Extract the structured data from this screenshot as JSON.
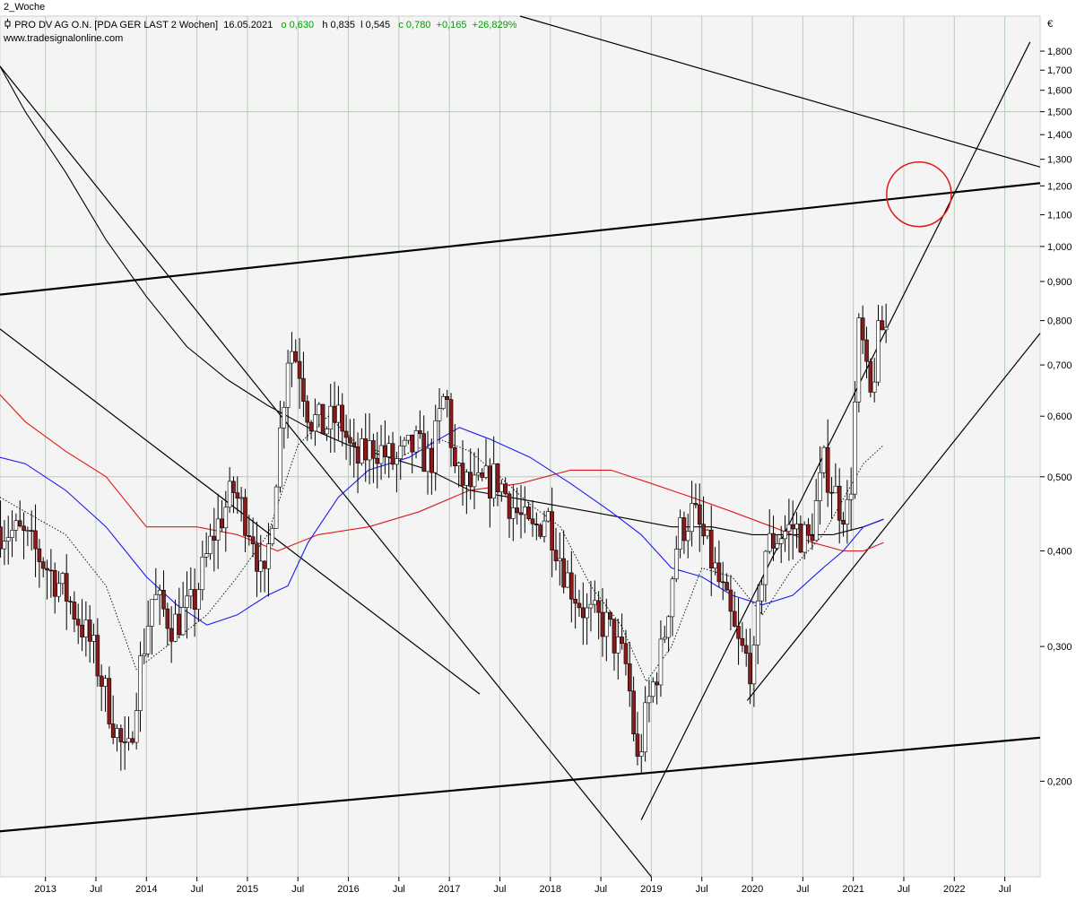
{
  "tab": {
    "label": "2_Woche"
  },
  "header": {
    "symbol_icon": "candlestick-icon",
    "instrument": "PRO DV AG O.N. [PDA GER LAST 2 Wochen]",
    "date": "16.05.2021",
    "open": "o 0,630",
    "high": "h 0,835",
    "low": "l 0,545",
    "close": "c 0,780",
    "change": "+0,165",
    "change_pct": "+26,829%"
  },
  "website": "www.tradesignalonline.com",
  "currency": "€",
  "colors": {
    "up_candle": "#ffffff",
    "down_candle": "#8b1a1a",
    "ma_red": "#e01818",
    "ma_blue": "#1a1aee",
    "ma_black": "#000000",
    "positive_text": "#00a000",
    "circle": "#e01818",
    "grid": "#b8ccb8"
  },
  "chart_data": {
    "type": "candlestick",
    "title": "PRO DV AG O.N. [PDA GER LAST 2 Wochen]",
    "y_scale": "log",
    "ylim": [
      0.15,
      2.0
    ],
    "y_ticks": [
      "1,800",
      "1,700",
      "1,600",
      "1,500",
      "1,400",
      "1,300",
      "1,200",
      "1,100",
      "1,000",
      "0,900",
      "0,800",
      "0,700",
      "0,600",
      "0,500",
      "0,400",
      "0,300",
      "0,200"
    ],
    "y_tick_values": [
      1.8,
      1.7,
      1.6,
      1.5,
      1.4,
      1.3,
      1.2,
      1.1,
      1.0,
      0.9,
      0.8,
      0.7,
      0.6,
      0.5,
      0.4,
      0.3,
      0.2
    ],
    "y_major": [
      1.5,
      1.0,
      0.5
    ],
    "x_range": [
      2012.55,
      2022.85
    ],
    "x_ticks": [
      {
        "label": "2013",
        "t": 2013.0
      },
      {
        "label": "Jul",
        "t": 2013.5
      },
      {
        "label": "2014",
        "t": 2014.0
      },
      {
        "label": "Jul",
        "t": 2014.5
      },
      {
        "label": "2015",
        "t": 2015.0
      },
      {
        "label": "Jul",
        "t": 2015.5
      },
      {
        "label": "2016",
        "t": 2016.0
      },
      {
        "label": "Jul",
        "t": 2016.5
      },
      {
        "label": "2017",
        "t": 2017.0
      },
      {
        "label": "Jul",
        "t": 2017.5
      },
      {
        "label": "2018",
        "t": 2018.0
      },
      {
        "label": "Jul",
        "t": 2018.5
      },
      {
        "label": "2019",
        "t": 2019.0
      },
      {
        "label": "Jul",
        "t": 2019.5
      },
      {
        "label": "2020",
        "t": 2020.0
      },
      {
        "label": "Jul",
        "t": 2020.5
      },
      {
        "label": "2021",
        "t": 2021.0
      },
      {
        "label": "Jul",
        "t": 2021.5
      },
      {
        "label": "2022",
        "t": 2022.0
      },
      {
        "label": "Jul",
        "t": 2022.5
      }
    ],
    "price_anchors": [
      [
        2012.55,
        0.43
      ],
      [
        2012.8,
        0.42
      ],
      [
        2013.0,
        0.39
      ],
      [
        2013.25,
        0.35
      ],
      [
        2013.5,
        0.3
      ],
      [
        2013.75,
        0.23
      ],
      [
        2013.85,
        0.21
      ],
      [
        2013.95,
        0.27
      ],
      [
        2014.1,
        0.35
      ],
      [
        2014.3,
        0.32
      ],
      [
        2014.5,
        0.34
      ],
      [
        2014.7,
        0.42
      ],
      [
        2014.9,
        0.48
      ],
      [
        2015.1,
        0.42
      ],
      [
        2015.2,
        0.35
      ],
      [
        2015.35,
        0.55
      ],
      [
        2015.45,
        0.75
      ],
      [
        2015.55,
        0.7
      ],
      [
        2015.65,
        0.6
      ],
      [
        2015.8,
        0.58
      ],
      [
        2015.95,
        0.6
      ],
      [
        2016.1,
        0.52
      ],
      [
        2016.3,
        0.55
      ],
      [
        2016.5,
        0.52
      ],
      [
        2016.7,
        0.55
      ],
      [
        2016.85,
        0.52
      ],
      [
        2017.0,
        0.65
      ],
      [
        2017.1,
        0.5
      ],
      [
        2017.3,
        0.48
      ],
      [
        2017.5,
        0.5
      ],
      [
        2017.7,
        0.45
      ],
      [
        2017.85,
        0.42
      ],
      [
        2018.0,
        0.45
      ],
      [
        2018.2,
        0.37
      ],
      [
        2018.4,
        0.33
      ],
      [
        2018.6,
        0.32
      ],
      [
        2018.8,
        0.28
      ],
      [
        2018.9,
        0.21
      ],
      [
        2019.0,
        0.25
      ],
      [
        2019.15,
        0.3
      ],
      [
        2019.3,
        0.42
      ],
      [
        2019.45,
        0.45
      ],
      [
        2019.6,
        0.4
      ],
      [
        2019.75,
        0.35
      ],
      [
        2019.9,
        0.3
      ],
      [
        2020.05,
        0.28
      ],
      [
        2020.15,
        0.4
      ],
      [
        2020.3,
        0.42
      ],
      [
        2020.45,
        0.43
      ],
      [
        2020.6,
        0.41
      ],
      [
        2020.75,
        0.52
      ],
      [
        2020.9,
        0.46
      ],
      [
        2021.0,
        0.45
      ],
      [
        2021.1,
        0.8
      ],
      [
        2021.2,
        0.62
      ],
      [
        2021.3,
        0.78
      ]
    ],
    "ma_red": [
      [
        2012.55,
        0.64
      ],
      [
        2012.8,
        0.59
      ],
      [
        2013.2,
        0.54
      ],
      [
        2013.6,
        0.5
      ],
      [
        2014.0,
        0.43
      ],
      [
        2014.5,
        0.43
      ],
      [
        2014.9,
        0.42
      ],
      [
        2015.3,
        0.4
      ],
      [
        2015.7,
        0.42
      ],
      [
        2016.2,
        0.43
      ],
      [
        2016.7,
        0.45
      ],
      [
        2017.2,
        0.48
      ],
      [
        2017.7,
        0.49
      ],
      [
        2018.2,
        0.51
      ],
      [
        2018.6,
        0.51
      ],
      [
        2019.0,
        0.49
      ],
      [
        2019.4,
        0.47
      ],
      [
        2019.8,
        0.45
      ],
      [
        2020.2,
        0.43
      ],
      [
        2020.6,
        0.41
      ],
      [
        2020.9,
        0.4
      ],
      [
        2021.1,
        0.4
      ],
      [
        2021.3,
        0.41
      ]
    ],
    "ma_blue": [
      [
        2012.55,
        0.53
      ],
      [
        2012.8,
        0.52
      ],
      [
        2013.2,
        0.48
      ],
      [
        2013.6,
        0.43
      ],
      [
        2014.0,
        0.37
      ],
      [
        2014.3,
        0.34
      ],
      [
        2014.6,
        0.32
      ],
      [
        2014.9,
        0.33
      ],
      [
        2015.2,
        0.35
      ],
      [
        2015.4,
        0.36
      ],
      [
        2015.6,
        0.41
      ],
      [
        2015.9,
        0.47
      ],
      [
        2016.2,
        0.51
      ],
      [
        2016.6,
        0.53
      ],
      [
        2016.9,
        0.56
      ],
      [
        2017.1,
        0.58
      ],
      [
        2017.4,
        0.56
      ],
      [
        2017.8,
        0.53
      ],
      [
        2018.2,
        0.49
      ],
      [
        2018.6,
        0.45
      ],
      [
        2018.9,
        0.42
      ],
      [
        2019.2,
        0.38
      ],
      [
        2019.5,
        0.37
      ],
      [
        2019.8,
        0.35
      ],
      [
        2020.1,
        0.34
      ],
      [
        2020.4,
        0.35
      ],
      [
        2020.7,
        0.38
      ],
      [
        2020.9,
        0.4
      ],
      [
        2021.1,
        0.43
      ],
      [
        2021.3,
        0.44
      ]
    ],
    "ma_black": [
      [
        2012.55,
        1.72
      ],
      [
        2012.8,
        1.5
      ],
      [
        2013.2,
        1.25
      ],
      [
        2013.6,
        1.02
      ],
      [
        2014.0,
        0.86
      ],
      [
        2014.4,
        0.74
      ],
      [
        2014.8,
        0.67
      ],
      [
        2015.2,
        0.62
      ],
      [
        2015.6,
        0.58
      ],
      [
        2016.0,
        0.55
      ],
      [
        2016.4,
        0.53
      ],
      [
        2016.8,
        0.51
      ],
      [
        2017.2,
        0.48
      ],
      [
        2017.6,
        0.47
      ],
      [
        2018.0,
        0.46
      ],
      [
        2018.4,
        0.45
      ],
      [
        2018.8,
        0.44
      ],
      [
        2019.2,
        0.43
      ],
      [
        2019.6,
        0.43
      ],
      [
        2020.0,
        0.42
      ],
      [
        2020.4,
        0.42
      ],
      [
        2020.8,
        0.42
      ],
      [
        2021.1,
        0.43
      ],
      [
        2021.3,
        0.44
      ]
    ],
    "ma_dotted": [
      [
        2012.55,
        0.47
      ],
      [
        2012.8,
        0.45
      ],
      [
        2013.2,
        0.42
      ],
      [
        2013.6,
        0.36
      ],
      [
        2013.9,
        0.28
      ],
      [
        2014.2,
        0.3
      ],
      [
        2014.6,
        0.33
      ],
      [
        2014.9,
        0.37
      ],
      [
        2015.2,
        0.42
      ],
      [
        2015.5,
        0.55
      ],
      [
        2015.8,
        0.6
      ],
      [
        2016.1,
        0.55
      ],
      [
        2016.5,
        0.53
      ],
      [
        2016.9,
        0.56
      ],
      [
        2017.2,
        0.54
      ],
      [
        2017.5,
        0.5
      ],
      [
        2017.8,
        0.46
      ],
      [
        2018.1,
        0.43
      ],
      [
        2018.4,
        0.36
      ],
      [
        2018.7,
        0.32
      ],
      [
        2018.95,
        0.27
      ],
      [
        2019.2,
        0.3
      ],
      [
        2019.5,
        0.38
      ],
      [
        2019.8,
        0.37
      ],
      [
        2020.1,
        0.33
      ],
      [
        2020.4,
        0.38
      ],
      [
        2020.7,
        0.42
      ],
      [
        2020.95,
        0.48
      ],
      [
        2021.1,
        0.52
      ],
      [
        2021.3,
        0.55
      ]
    ],
    "trendlines": [
      {
        "name": "upper-channel",
        "p1": [
          2012.55,
          0.865
        ],
        "p2": [
          2022.85,
          1.21
        ],
        "width": 2.2
      },
      {
        "name": "lower-channel",
        "p1": [
          2012.55,
          0.172
        ],
        "p2": [
          2022.85,
          0.228
        ],
        "width": 2.2
      },
      {
        "name": "downtrend-top",
        "p1": [
          2017.7,
          2.0
        ],
        "p2": [
          2022.85,
          1.27
        ],
        "width": 1.2
      },
      {
        "name": "downtrend-long",
        "p1": [
          2012.55,
          1.72
        ],
        "p2": [
          2019.0,
          0.15
        ],
        "width": 1.2
      },
      {
        "name": "downtrend-mid",
        "p1": [
          2012.55,
          0.78
        ],
        "p2": [
          2017.3,
          0.26
        ],
        "width": 1.2
      },
      {
        "name": "uptrend-steep",
        "p1": [
          2018.9,
          0.178
        ],
        "p2": [
          2022.75,
          1.85
        ],
        "width": 1.2
      },
      {
        "name": "uptrend-lower",
        "p1": [
          2019.95,
          0.255
        ],
        "p2": [
          2022.85,
          0.77
        ],
        "width": 1.2
      }
    ],
    "annotation_circle": {
      "t": 2021.65,
      "price": 1.17
    }
  }
}
